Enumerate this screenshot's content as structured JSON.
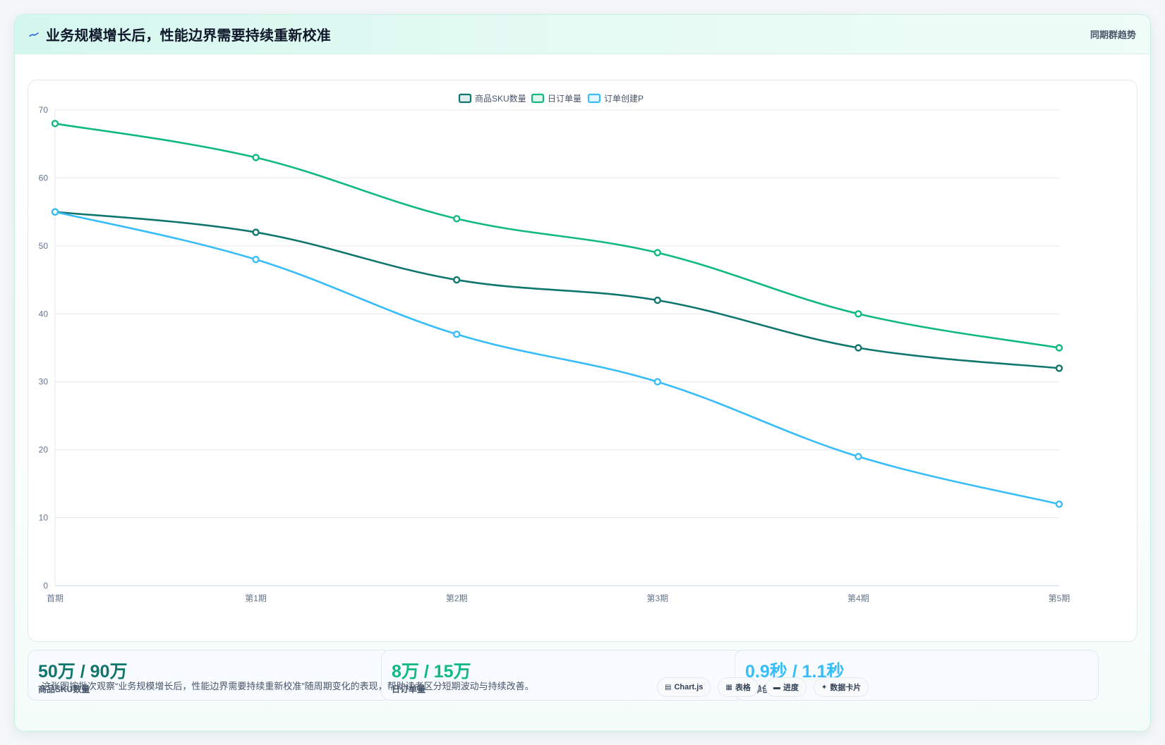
{
  "header": {
    "title": "业务规模增长后，性能边界需要持续重新校准",
    "link": "同期群趋势",
    "icon": "pulse-icon"
  },
  "chart_data": {
    "type": "line",
    "categories": [
      "首期",
      "第1期",
      "第2期",
      "第3期",
      "第4期",
      "第5期"
    ],
    "series": [
      {
        "name": "商品SKU数量",
        "color": "#0f766e",
        "values": [
          55,
          52,
          45,
          42,
          35,
          32
        ]
      },
      {
        "name": "日订单量",
        "color": "#10b981",
        "values": [
          68,
          63,
          54,
          49,
          40,
          35
        ]
      },
      {
        "name": "订单创建P",
        "color": "#38bdf8",
        "values": [
          55,
          48,
          37,
          30,
          19,
          12
        ]
      }
    ],
    "ylim": [
      0,
      70
    ],
    "yticks": [
      0,
      10,
      20,
      30,
      40,
      50,
      60,
      70
    ],
    "grid": true,
    "legend": "top-center"
  },
  "stats": [
    {
      "value": "50万 / 90万",
      "label": "商品SKU数量",
      "color": "#0f766e"
    },
    {
      "value": "8万 / 15万",
      "label": "日订单量",
      "color": "#10b981"
    },
    {
      "value": "0.9秒 / 1.1秒",
      "label": "订单创建P",
      "color": "#38bdf8"
    }
  ],
  "footer": {
    "note": "这张图按批次观察“业务规模增长后，性能边界需要持续重新校准”随周期变化的表现，帮助读者区分短期波动与持续改善。"
  },
  "pills": [
    {
      "icon": "chart-icon",
      "glyph": "▤",
      "label": "Chart.js"
    },
    {
      "icon": "table-icon",
      "glyph": "▦",
      "label": "表格"
    },
    {
      "icon": "progress-icon",
      "glyph": "▬",
      "label": "进度"
    },
    {
      "icon": "card-icon",
      "glyph": "✦",
      "label": "数据卡片"
    }
  ]
}
